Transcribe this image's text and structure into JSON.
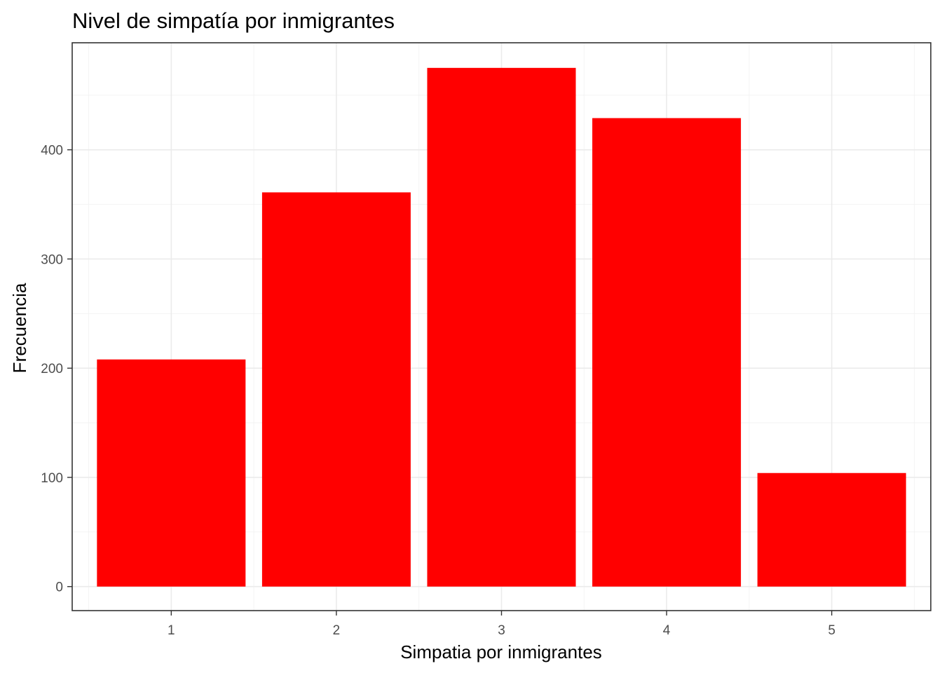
{
  "chart_data": {
    "type": "bar",
    "title": "Nivel de simpatía por inmigrantes",
    "xlabel": "Simpatia por inmigrantes",
    "ylabel": "Frecuencia",
    "categories": [
      "1",
      "2",
      "3",
      "4",
      "5"
    ],
    "values": [
      208,
      361,
      475,
      429,
      104
    ],
    "yticks": [
      0,
      100,
      200,
      300,
      400
    ],
    "ylim": [
      -22,
      498
    ],
    "bar_color": "#FF0000",
    "grid": true,
    "legend": "none"
  }
}
